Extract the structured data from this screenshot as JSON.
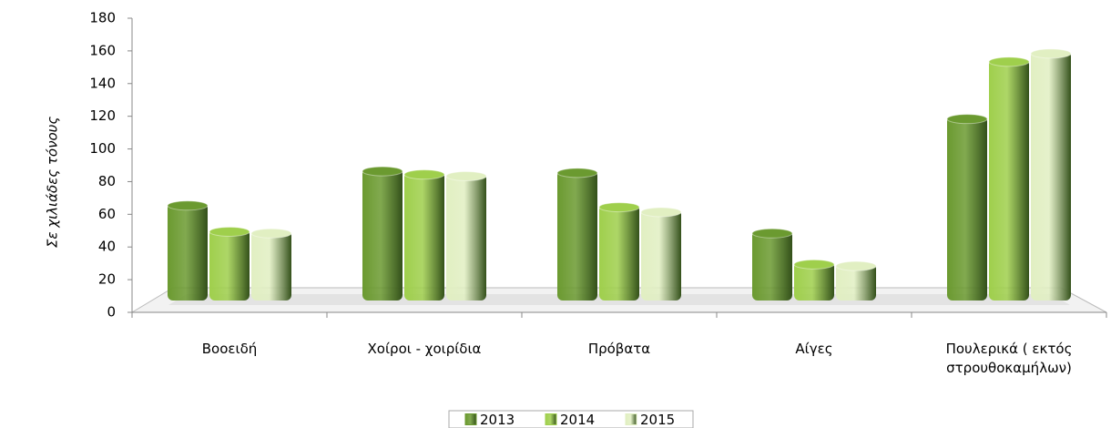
{
  "chart_data": {
    "type": "bar",
    "y_label": "Σε χιλιάδες τόνους",
    "categories": [
      "Βοοειδή",
      "Χοίροι - χοιρίδια",
      "Πρόβατα",
      "Αίγες",
      "Πουλερικά ( εκτός στρουθοκαμήλων)"
    ],
    "series": [
      {
        "name": "2013",
        "color": "#6b9a30",
        "values": [
          67,
          88,
          87,
          50,
          120
        ]
      },
      {
        "name": "2014",
        "color": "#9fcf4c",
        "values": [
          51,
          86,
          66,
          31,
          155
        ]
      },
      {
        "name": "2015",
        "color": "#e1efc2",
        "values": [
          50,
          85,
          63,
          30,
          160
        ]
      }
    ],
    "ylim": [
      0,
      180
    ],
    "yticks": [
      0,
      20,
      40,
      60,
      80,
      100,
      120,
      140,
      160,
      180
    ],
    "legend": "bottom"
  }
}
